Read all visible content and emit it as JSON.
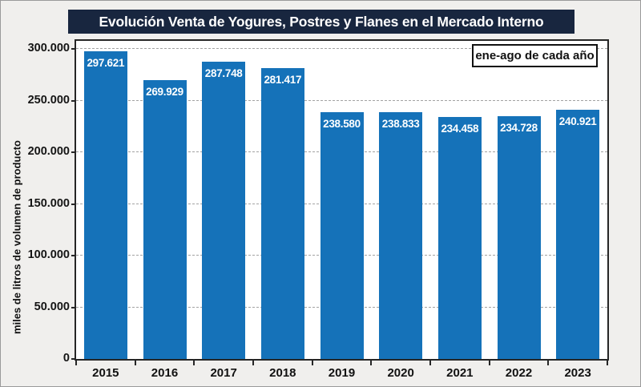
{
  "title": "Evolución Venta de Yogures, Postres y Flanes en el Mercado Interno",
  "annotation": "ene-ago de cada año",
  "chart_data": {
    "type": "bar",
    "title": "Evolución Venta de Yogures, Postres y Flanes en el Mercado Interno",
    "categories": [
      "2015",
      "2016",
      "2017",
      "2018",
      "2019",
      "2020",
      "2021",
      "2022",
      "2023"
    ],
    "values": [
      297621,
      269929,
      287748,
      281417,
      238580,
      238833,
      234458,
      234728,
      240921
    ],
    "bar_labels": [
      "297.621",
      "269.929",
      "287.748",
      "281.417",
      "238.580",
      "238.833",
      "234.458",
      "234.728",
      "240.921"
    ],
    "xlabel": "",
    "ylabel": "miles de litros de volumen de producto",
    "ylim": [
      0,
      307800
    ],
    "yticks": [
      {
        "value": 0,
        "label": "0"
      },
      {
        "value": 50000,
        "label": "50.000"
      },
      {
        "value": 100000,
        "label": "100.000"
      },
      {
        "value": 150000,
        "label": "150.000"
      },
      {
        "value": 200000,
        "label": "200.000"
      },
      {
        "value": 250000,
        "label": "250.000"
      },
      {
        "value": 300000,
        "label": "300.000"
      }
    ],
    "grid": true,
    "gridline_style": "dashed",
    "annotation": "ene-ago de cada año",
    "annotation_position": "top-right",
    "bar_color": "#1572B9",
    "data_label_color": "#FFFFFF"
  },
  "colors": {
    "background": "#F0EFED",
    "plot_background": "#FFFFFF",
    "title_background": "#18263F",
    "title_text": "#FFFFFF",
    "bar": "#1572B9",
    "gridline": "#A3A3A3",
    "axis": "#262626"
  }
}
